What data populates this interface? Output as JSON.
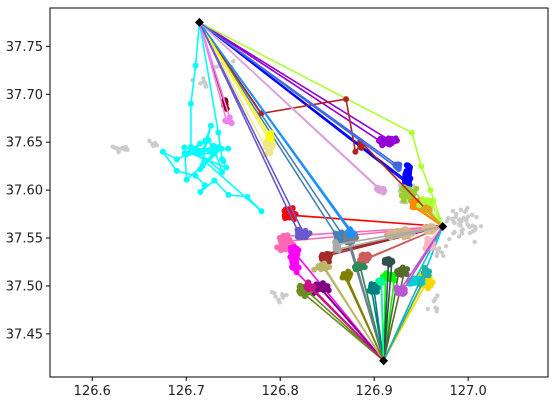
{
  "chart_data": {
    "type": "scatter",
    "title": "",
    "xlabel": "",
    "ylabel": "",
    "xlim": [
      126.555,
      127.085
    ],
    "ylim": [
      37.405,
      37.79
    ],
    "grid": false,
    "legend": "none",
    "x_ticks": [
      126.6,
      126.7,
      126.8,
      126.9,
      127.0
    ],
    "x_tick_labels": [
      "126.6",
      "126.7",
      "126.8",
      "126.9",
      "127.0"
    ],
    "y_ticks": [
      37.45,
      37.5,
      37.55,
      37.6,
      37.65,
      37.7,
      37.75
    ],
    "y_tick_labels": [
      "37.45",
      "37.50",
      "37.55",
      "37.60",
      "37.65",
      "37.70",
      "37.75"
    ],
    "hubs": [
      {
        "x": 126.714,
        "y": 37.775
      },
      {
        "x": 126.973,
        "y": 37.562
      },
      {
        "x": 126.91,
        "y": 37.422
      }
    ],
    "background_points": {
      "color": "#cccccc",
      "groups": [
        {
          "cx": 126.63,
          "cy": 37.643,
          "sx": 0.012,
          "sy": 0.004,
          "n": 14
        },
        {
          "cx": 126.665,
          "cy": 37.648,
          "sx": 0.006,
          "sy": 0.003,
          "n": 6
        },
        {
          "cx": 126.72,
          "cy": 37.71,
          "sx": 0.01,
          "sy": 0.01,
          "n": 8
        },
        {
          "cx": 126.74,
          "cy": 37.73,
          "sx": 0.012,
          "sy": 0.008,
          "n": 8
        },
        {
          "cx": 126.93,
          "cy": 37.6,
          "sx": 0.01,
          "sy": 0.012,
          "n": 10
        },
        {
          "cx": 126.995,
          "cy": 37.565,
          "sx": 0.018,
          "sy": 0.015,
          "n": 40
        },
        {
          "cx": 126.97,
          "cy": 37.54,
          "sx": 0.012,
          "sy": 0.01,
          "n": 12
        },
        {
          "cx": 126.8,
          "cy": 37.49,
          "sx": 0.008,
          "sy": 0.008,
          "n": 10
        },
        {
          "cx": 126.965,
          "cy": 37.48,
          "sx": 0.006,
          "sy": 0.008,
          "n": 8
        }
      ]
    },
    "series": [
      {
        "color": "#00ffff",
        "hub": 0,
        "cluster": [
          126.72,
          37.64,
          0.035,
          0.025
        ],
        "path": [
          [
            126.714,
            37.775
          ],
          [
            126.71,
            37.73
          ],
          [
            126.705,
            37.69
          ],
          [
            126.705,
            37.645
          ],
          [
            126.7,
            37.637
          ],
          [
            126.69,
            37.632
          ],
          [
            126.675,
            37.64
          ],
          [
            126.69,
            37.62
          ],
          [
            126.71,
            37.615
          ],
          [
            126.72,
            37.605
          ],
          [
            126.715,
            37.598
          ],
          [
            126.73,
            37.61
          ],
          [
            126.745,
            37.595
          ],
          [
            126.765,
            37.593
          ],
          [
            126.78,
            37.578
          ]
        ],
        "n": 25
      },
      {
        "color": "#ff0000",
        "hub": 1,
        "cluster": [
          126.81,
          37.575,
          0.006,
          0.005
        ],
        "n": 45
      },
      {
        "color": "#ffd700",
        "hub": 2,
        "cluster": [
          126.955,
          37.505,
          0.008,
          0.006
        ],
        "n": 50
      },
      {
        "color": "#00ff00",
        "hub": 2,
        "cluster": [
          126.915,
          37.51,
          0.006,
          0.004
        ],
        "n": 30
      },
      {
        "color": "#0000ff",
        "hub": 0,
        "cluster": [
          126.935,
          37.615,
          0.004,
          0.01
        ],
        "n": 30
      },
      {
        "color": "#9acd32",
        "hub": 1,
        "cluster": [
          126.935,
          37.595,
          0.008,
          0.008
        ],
        "n": 35
      },
      {
        "color": "#9400d3",
        "hub": 0,
        "cluster": [
          126.915,
          37.65,
          0.01,
          0.005
        ],
        "n": 30
      },
      {
        "color": "#ff69b4",
        "hub": 1,
        "cluster": [
          126.805,
          37.545,
          0.007,
          0.008
        ],
        "n": 30
      },
      {
        "color": "#ff00ff",
        "hub": 2,
        "cluster": [
          126.815,
          37.53,
          0.006,
          0.015
        ],
        "n": 30
      },
      {
        "color": "#800080",
        "hub": 2,
        "cluster": [
          126.84,
          37.498,
          0.01,
          0.005
        ],
        "n": 30
      },
      {
        "color": "#008080",
        "hub": 2,
        "cluster": [
          126.9,
          37.498,
          0.005,
          0.005
        ],
        "n": 30
      },
      {
        "color": "#00ced1",
        "hub": 1,
        "cluster": [
          126.945,
          37.505,
          0.006,
          0.004
        ],
        "n": 25
      },
      {
        "color": "#6b8e23",
        "hub": 2,
        "cluster": [
          126.825,
          37.495,
          0.006,
          0.006
        ],
        "n": 25
      },
      {
        "color": "#a52a2a",
        "hub": 1,
        "cluster": [
          126.85,
          37.53,
          0.006,
          0.006
        ],
        "n": 25
      },
      {
        "color": "#ff8c00",
        "hub": 1,
        "cluster": [
          126.945,
          37.585,
          0.006,
          0.005
        ],
        "n": 30
      },
      {
        "color": "#4682b4",
        "hub": 0,
        "cluster": [
          126.865,
          37.55,
          0.006,
          0.006
        ],
        "n": 25
      },
      {
        "color": "#708090",
        "hub": 2,
        "cluster": [
          126.875,
          37.55,
          0.006,
          0.006
        ],
        "n": 30
      },
      {
        "color": "#d2b48c",
        "hub": 1,
        "cluster": [
          126.925,
          37.555,
          0.012,
          0.005
        ],
        "n": 30
      },
      {
        "color": "#ffb6c1",
        "hub": 1,
        "cluster": [
          126.96,
          37.545,
          0.006,
          0.006
        ],
        "n": 25
      },
      {
        "color": "#adff2f",
        "hub": 1,
        "path": [
          [
            126.714,
            37.775
          ],
          [
            126.94,
            37.66
          ],
          [
            126.95,
            37.625
          ],
          [
            126.96,
            37.6
          ],
          [
            126.973,
            37.562
          ]
        ],
        "cluster": [
          126.955,
          37.588,
          0.008,
          0.004
        ],
        "n": 20
      },
      {
        "color": "#8b0000",
        "hub": 0,
        "cluster": [
          126.74,
          37.69,
          0.005,
          0.004
        ],
        "n": 8
      },
      {
        "color": "#b22222",
        "hub": 1,
        "path": [
          [
            126.714,
            37.775
          ],
          [
            126.78,
            37.68
          ],
          [
            126.87,
            37.695
          ],
          [
            126.88,
            37.64
          ]
        ],
        "cluster": [
          126.885,
          37.645,
          0.004,
          0.004
        ],
        "n": 6
      },
      {
        "color": "#ee82ee",
        "hub": 0,
        "cluster": [
          126.745,
          37.672,
          0.006,
          0.004
        ],
        "n": 8
      },
      {
        "color": "#f0e68c",
        "hub": 0,
        "cluster": [
          126.79,
          37.645,
          0.006,
          0.006
        ],
        "n": 12
      },
      {
        "color": "#ffff00",
        "hub": 0,
        "cluster": [
          126.79,
          37.655,
          0.004,
          0.004
        ],
        "n": 8
      },
      {
        "color": "#daa520",
        "hub": 1,
        "cluster": [
          126.955,
          37.58,
          0.004,
          0.003
        ],
        "n": 15
      },
      {
        "color": "#bdb76b",
        "hub": 2,
        "cluster": [
          126.845,
          37.52,
          0.008,
          0.004
        ],
        "n": 20
      },
      {
        "color": "#2e8b57",
        "hub": 2,
        "cluster": [
          126.885,
          37.52,
          0.005,
          0.004
        ],
        "n": 20
      },
      {
        "color": "#6a5acd",
        "hub": 0,
        "cluster": [
          126.825,
          37.555,
          0.006,
          0.004
        ],
        "n": 20
      },
      {
        "color": "#556b2f",
        "hub": 2,
        "cluster": [
          126.93,
          37.515,
          0.006,
          0.004
        ],
        "n": 20
      },
      {
        "color": "#cd5c5c",
        "hub": 1,
        "cluster": [
          126.89,
          37.53,
          0.006,
          0.004
        ],
        "n": 20
      },
      {
        "color": "#20b2aa",
        "hub": 2,
        "cluster": [
          126.955,
          37.515,
          0.004,
          0.004
        ],
        "n": 15
      },
      {
        "color": "#ba55d3",
        "hub": 1,
        "cluster": [
          126.93,
          37.495,
          0.005,
          0.004
        ],
        "n": 20
      },
      {
        "color": "#1e90ff",
        "hub": 0,
        "cluster": [
          126.875,
          37.555,
          0.004,
          0.004
        ],
        "n": 15
      },
      {
        "color": "#808000",
        "hub": 2,
        "cluster": [
          126.87,
          37.51,
          0.005,
          0.004
        ],
        "n": 20
      },
      {
        "color": "#dda0dd",
        "hub": 0,
        "cluster": [
          126.905,
          37.6,
          0.006,
          0.004
        ],
        "n": 10
      },
      {
        "color": "#2f4f4f",
        "hub": 2,
        "cluster": [
          126.915,
          37.525,
          0.004,
          0.003
        ],
        "n": 15
      },
      {
        "color": "#deb887",
        "hub": 1,
        "cluster": [
          126.96,
          37.56,
          0.005,
          0.004
        ],
        "n": 15
      },
      {
        "color": "#c71585",
        "hub": 2,
        "cluster": [
          126.83,
          37.5,
          0.004,
          0.004
        ],
        "n": 15
      },
      {
        "color": "#00fa9a",
        "hub": 2,
        "cluster": [
          126.905,
          37.505,
          0.004,
          0.003
        ],
        "n": 12
      },
      {
        "color": "#4169e1",
        "hub": 0,
        "cluster": [
          126.925,
          37.625,
          0.004,
          0.004
        ],
        "n": 12
      },
      {
        "color": "#a9a9a9",
        "hub": 1,
        "cluster": [
          126.86,
          37.54,
          0.004,
          0.004
        ],
        "n": 12
      }
    ]
  }
}
